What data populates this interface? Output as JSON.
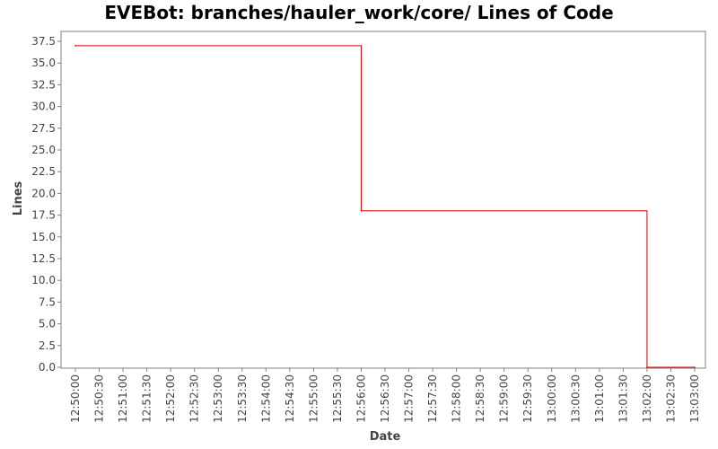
{
  "chart_data": {
    "type": "line",
    "title": "EVEBot: branches/hauler_work/core/ Lines of Code",
    "xlabel": "Date",
    "ylabel": "Lines",
    "ylim": [
      0,
      37.5
    ],
    "y_ticks": [
      "0.0",
      "2.5",
      "5.0",
      "7.5",
      "10.0",
      "12.5",
      "15.0",
      "17.5",
      "20.0",
      "22.5",
      "25.0",
      "27.5",
      "30.0",
      "32.5",
      "35.0",
      "37.5"
    ],
    "x_ticks": [
      "12:50:00",
      "12:50:30",
      "12:51:00",
      "12:51:30",
      "12:52:00",
      "12:52:30",
      "12:53:00",
      "12:53:30",
      "12:54:00",
      "12:54:30",
      "12:55:00",
      "12:55:30",
      "12:56:00",
      "12:56:30",
      "12:57:00",
      "12:57:30",
      "12:58:00",
      "12:58:30",
      "12:59:00",
      "12:59:30",
      "13:00:00",
      "13:00:30",
      "13:01:00",
      "13:01:30",
      "13:02:00",
      "13:02:30",
      "13:03:00"
    ],
    "grid": false,
    "series": [
      {
        "color": "#cc0000",
        "step": true,
        "points": [
          {
            "x": "12:50:00",
            "y": 37
          },
          {
            "x": "12:56:00",
            "y": 18
          },
          {
            "x": "13:02:00",
            "y": 0
          },
          {
            "x": "13:03:00",
            "y": 0
          }
        ]
      }
    ]
  }
}
